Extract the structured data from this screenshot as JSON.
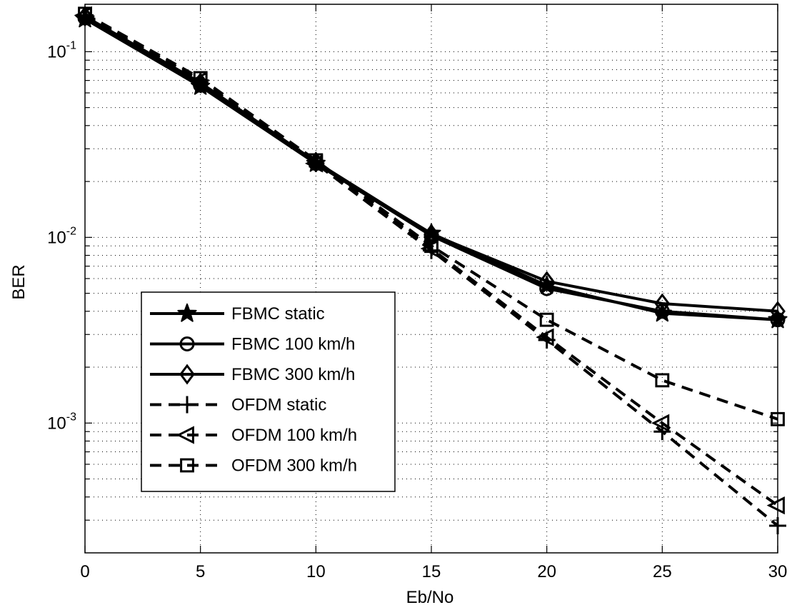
{
  "chart_data": {
    "type": "line",
    "xlabel": "Eb/No",
    "ylabel": "BER",
    "x": [
      0,
      5,
      10,
      15,
      20,
      25,
      30
    ],
    "xlim": [
      0,
      30
    ],
    "ylim": [
      0.0002,
      0.18
    ],
    "yscale": "log",
    "x_ticks": [
      "0",
      "5",
      "10",
      "15",
      "20",
      "25",
      "30"
    ],
    "y_ticks": [
      {
        "base": "10",
        "exp": "-1",
        "value": 0.1
      },
      {
        "base": "10",
        "exp": "-2",
        "value": 0.01
      },
      {
        "base": "10",
        "exp": "-3",
        "value": 0.001
      }
    ],
    "grid": true,
    "legend_position": "lower-left",
    "series": [
      {
        "name": "FBMC static",
        "marker": "star",
        "line": "solid",
        "color": "#000000",
        "values": [
          0.15,
          0.065,
          0.025,
          0.0105,
          0.0055,
          0.0039,
          0.0036
        ]
      },
      {
        "name": "FBMC 100 km/h",
        "marker": "circle",
        "line": "solid",
        "color": "#000000",
        "values": [
          0.152,
          0.066,
          0.025,
          0.0102,
          0.0053,
          0.004,
          0.0036
        ]
      },
      {
        "name": "FBMC 300 km/h",
        "marker": "diamond",
        "line": "solid",
        "color": "#000000",
        "values": [
          0.155,
          0.068,
          0.0255,
          0.0104,
          0.0058,
          0.0044,
          0.004
        ]
      },
      {
        "name": "OFDM static",
        "marker": "plus",
        "line": "dashed",
        "color": "#000000",
        "values": [
          0.157,
          0.07,
          0.025,
          0.0085,
          0.0028,
          0.0009,
          0.00028
        ]
      },
      {
        "name": "OFDM 100 km/h",
        "marker": "triangle-left",
        "line": "dashed",
        "color": "#000000",
        "values": [
          0.157,
          0.07,
          0.025,
          0.0087,
          0.0029,
          0.001,
          0.00036
        ]
      },
      {
        "name": "OFDM 300 km/h",
        "marker": "square",
        "line": "dashed",
        "color": "#000000",
        "values": [
          0.16,
          0.072,
          0.026,
          0.009,
          0.0036,
          0.0017,
          0.00105
        ]
      }
    ]
  }
}
